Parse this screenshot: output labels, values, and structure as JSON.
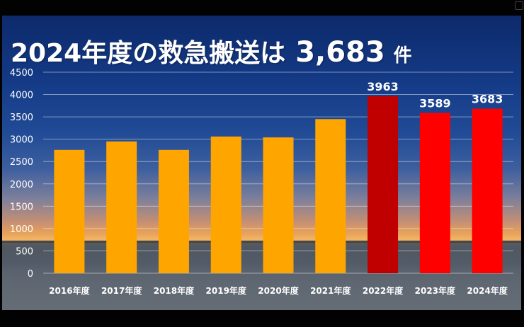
{
  "slide": {
    "title_main": "2024年度の救急搬送は",
    "title_number": "3,683",
    "title_unit": "件"
  },
  "colors": {
    "bar_default": "#FFA500",
    "bar_2022": "#C00000",
    "bar_recent": "#FF0000",
    "label": "#FFFFFF",
    "grid": "#FFFFFF"
  },
  "chart_data": {
    "type": "bar",
    "categories": [
      "2016年度",
      "2017年度",
      "2018年度",
      "2019年度",
      "2020年度",
      "2021年度",
      "2022年度",
      "2023年度",
      "2024年度"
    ],
    "values": [
      2760,
      2950,
      2760,
      3060,
      3040,
      3450,
      3963,
      3589,
      3683
    ],
    "data_labels": [
      "",
      "",
      "",
      "",
      "",
      "",
      "3963",
      "3589",
      "3683"
    ],
    "bar_colors": [
      "#FFA500",
      "#FFA500",
      "#FFA500",
      "#FFA500",
      "#FFA500",
      "#FFA500",
      "#C00000",
      "#FF0000",
      "#FF0000"
    ],
    "ylim": [
      0,
      4500
    ],
    "yticks": [
      0,
      500,
      1000,
      1500,
      2000,
      2500,
      3000,
      3500,
      4000,
      4500
    ],
    "ytick_labels": [
      "0",
      "500",
      "1000",
      "1500",
      "2000",
      "2500",
      "3000",
      "3500",
      "4000",
      "4500"
    ],
    "grid": true,
    "legend": "none"
  }
}
